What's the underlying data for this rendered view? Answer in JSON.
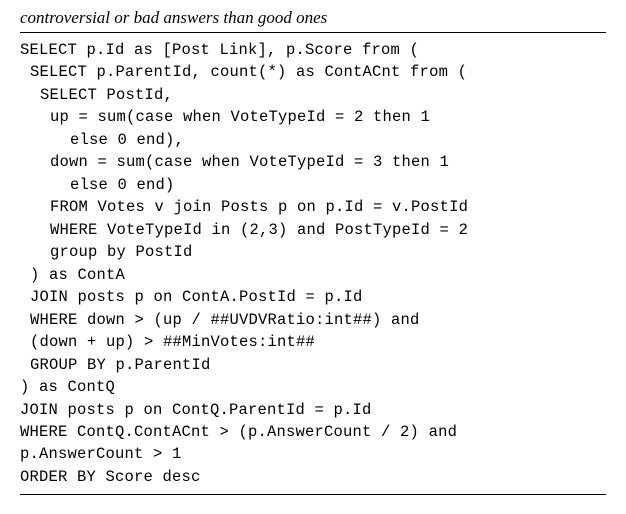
{
  "title": "controversial or bad answers than good ones",
  "code_lines": [
    {
      "text": "SELECT p.Id as [Post Link], p.Score from (",
      "indent": 0
    },
    {
      "text": "SELECT p.ParentId, count(*) as ContACnt from (",
      "indent": 1
    },
    {
      "text": "SELECT PostId,",
      "indent": 2
    },
    {
      "text": "up = sum(case when VoteTypeId = 2 then 1",
      "indent": 3
    },
    {
      "text": "else 0 end),",
      "indent": 5
    },
    {
      "text": "down = sum(case when VoteTypeId = 3 then 1",
      "indent": 3
    },
    {
      "text": "else 0 end)",
      "indent": 5
    },
    {
      "text": "FROM Votes v join Posts p on p.Id = v.PostId",
      "indent": 3
    },
    {
      "text": "WHERE VoteTypeId in (2,3) and PostTypeId = 2",
      "indent": 3
    },
    {
      "text": "group by PostId",
      "indent": 3
    },
    {
      "text": ") as ContA",
      "indent": 1
    },
    {
      "text": "JOIN posts p on ContA.PostId = p.Id",
      "indent": 1
    },
    {
      "text": "WHERE down > (up / ##UVDVRatio:int##) and",
      "indent": 1
    },
    {
      "text": "(down + up) > ##MinVotes:int##",
      "indent": 1
    },
    {
      "text": "GROUP BY p.ParentId",
      "indent": 1
    },
    {
      "text": ") as ContQ",
      "indent": 0
    },
    {
      "text": "JOIN posts p on ContQ.ParentId = p.Id",
      "indent": 0
    },
    {
      "text": "WHERE ContQ.ContACnt > (p.AnswerCount / 2) and",
      "indent": 0
    },
    {
      "text": "p.AnswerCount > 1",
      "indent": 0
    },
    {
      "text": "ORDER BY Score desc",
      "indent": 0
    }
  ]
}
